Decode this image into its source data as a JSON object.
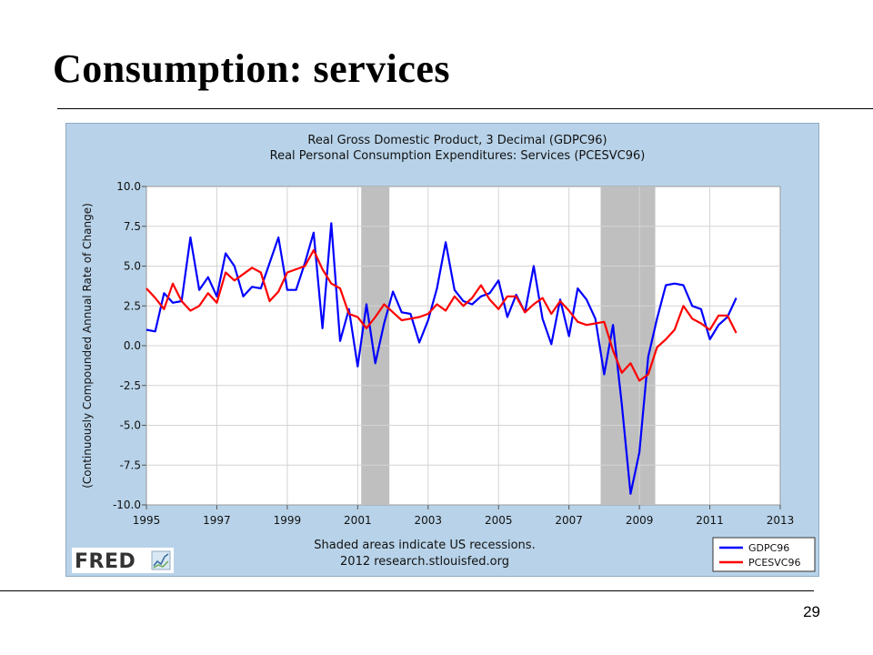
{
  "slide": {
    "title": "Consumption:  services",
    "page_number": "29"
  },
  "chart_data": {
    "type": "line",
    "title_lines": [
      "Real Gross Domestic Product, 3 Decimal (GDPC96)",
      "Real Personal Consumption Expenditures: Services (PCESVC96)"
    ],
    "ylabel": "(Continuously Compounded Annual Rate of Change)",
    "xlabel": "",
    "xlim": [
      1995,
      2013
    ],
    "ylim": [
      -10,
      10
    ],
    "x_ticks": [
      "1995",
      "1997",
      "1999",
      "2001",
      "2003",
      "2005",
      "2007",
      "2009",
      "2011",
      "2013"
    ],
    "y_ticks": [
      "10.0",
      "7.5",
      "5.0",
      "2.5",
      "0.0",
      "-2.5",
      "-5.0",
      "-7.5",
      "-10.0"
    ],
    "grid": true,
    "recessions": [
      [
        2001.1,
        2001.9
      ],
      [
        2007.9,
        2009.45
      ]
    ],
    "note_lines": [
      "Shaded areas indicate US recessions.",
      "2012 research.stlouisfed.org"
    ],
    "logo": "FRED",
    "legend_position": "bottom-right",
    "series": [
      {
        "name": "GDPC96",
        "color": "#0000ff",
        "x": [
          1995.0,
          1995.25,
          1995.5,
          1995.75,
          1996.0,
          1996.25,
          1996.5,
          1996.75,
          1997.0,
          1997.25,
          1997.5,
          1997.75,
          1998.0,
          1998.25,
          1998.5,
          1998.75,
          1999.0,
          1999.25,
          1999.5,
          1999.75,
          2000.0,
          2000.25,
          2000.5,
          2000.75,
          2001.0,
          2001.25,
          2001.5,
          2001.75,
          2002.0,
          2002.25,
          2002.5,
          2002.75,
          2003.0,
          2003.25,
          2003.5,
          2003.75,
          2004.0,
          2004.25,
          2004.5,
          2004.75,
          2005.0,
          2005.25,
          2005.5,
          2005.75,
          2006.0,
          2006.25,
          2006.5,
          2006.75,
          2007.0,
          2007.25,
          2007.5,
          2007.75,
          2008.0,
          2008.25,
          2008.5,
          2008.75,
          2009.0,
          2009.25,
          2009.5,
          2009.75,
          2010.0,
          2010.25,
          2010.5,
          2010.75,
          2011.0,
          2011.25,
          2011.5,
          2011.75
        ],
        "y": [
          1.0,
          0.9,
          3.3,
          2.7,
          2.8,
          6.8,
          3.5,
          4.3,
          3.1,
          5.8,
          5.0,
          3.1,
          3.7,
          3.6,
          5.2,
          6.8,
          3.5,
          3.5,
          5.2,
          7.1,
          1.1,
          7.7,
          0.3,
          2.3,
          -1.3,
          2.6,
          -1.1,
          1.4,
          3.4,
          2.1,
          2.0,
          0.2,
          1.6,
          3.6,
          6.5,
          3.5,
          2.8,
          2.6,
          3.1,
          3.3,
          4.1,
          1.8,
          3.2,
          2.1,
          5.0,
          1.7,
          0.1,
          2.9,
          0.6,
          3.6,
          2.9,
          1.7,
          -1.8,
          1.3,
          -3.7,
          -9.3,
          -6.7,
          -0.7,
          1.7,
          3.8,
          3.9,
          3.8,
          2.5,
          2.3,
          0.4,
          1.3,
          1.8,
          3.0
        ]
      },
      {
        "name": "PCESVC96",
        "color": "#ff0000",
        "x": [
          1995.0,
          1995.25,
          1995.5,
          1995.75,
          1996.0,
          1996.25,
          1996.5,
          1996.75,
          1997.0,
          1997.25,
          1997.5,
          1997.75,
          1998.0,
          1998.25,
          1998.5,
          1998.75,
          1999.0,
          1999.25,
          1999.5,
          1999.75,
          2000.0,
          2000.25,
          2000.5,
          2000.75,
          2001.0,
          2001.25,
          2001.5,
          2001.75,
          2002.0,
          2002.25,
          2002.5,
          2002.75,
          2003.0,
          2003.25,
          2003.5,
          2003.75,
          2004.0,
          2004.25,
          2004.5,
          2004.75,
          2005.0,
          2005.25,
          2005.5,
          2005.75,
          2006.0,
          2006.25,
          2006.5,
          2006.75,
          2007.0,
          2007.25,
          2007.5,
          2007.75,
          2008.0,
          2008.25,
          2008.5,
          2008.75,
          2009.0,
          2009.25,
          2009.5,
          2009.75,
          2010.0,
          2010.25,
          2010.5,
          2010.75,
          2011.0,
          2011.25,
          2011.5,
          2011.75
        ],
        "y": [
          3.6,
          3.0,
          2.3,
          3.9,
          2.8,
          2.2,
          2.5,
          3.3,
          2.7,
          4.6,
          4.1,
          4.5,
          4.9,
          4.6,
          2.8,
          3.4,
          4.6,
          4.8,
          5.0,
          6.0,
          4.8,
          3.9,
          3.6,
          2.0,
          1.8,
          1.1,
          1.8,
          2.6,
          2.1,
          1.6,
          1.7,
          1.8,
          2.0,
          2.6,
          2.2,
          3.1,
          2.5,
          3.0,
          3.8,
          2.9,
          2.3,
          3.1,
          3.1,
          2.1,
          2.6,
          3.0,
          2.0,
          2.8,
          2.2,
          1.5,
          1.3,
          1.4,
          1.5,
          -0.3,
          -1.7,
          -1.1,
          -2.2,
          -1.8,
          -0.1,
          0.4,
          1.0,
          2.5,
          1.7,
          1.4,
          1.0,
          1.9,
          1.9,
          0.8
        ]
      }
    ]
  }
}
